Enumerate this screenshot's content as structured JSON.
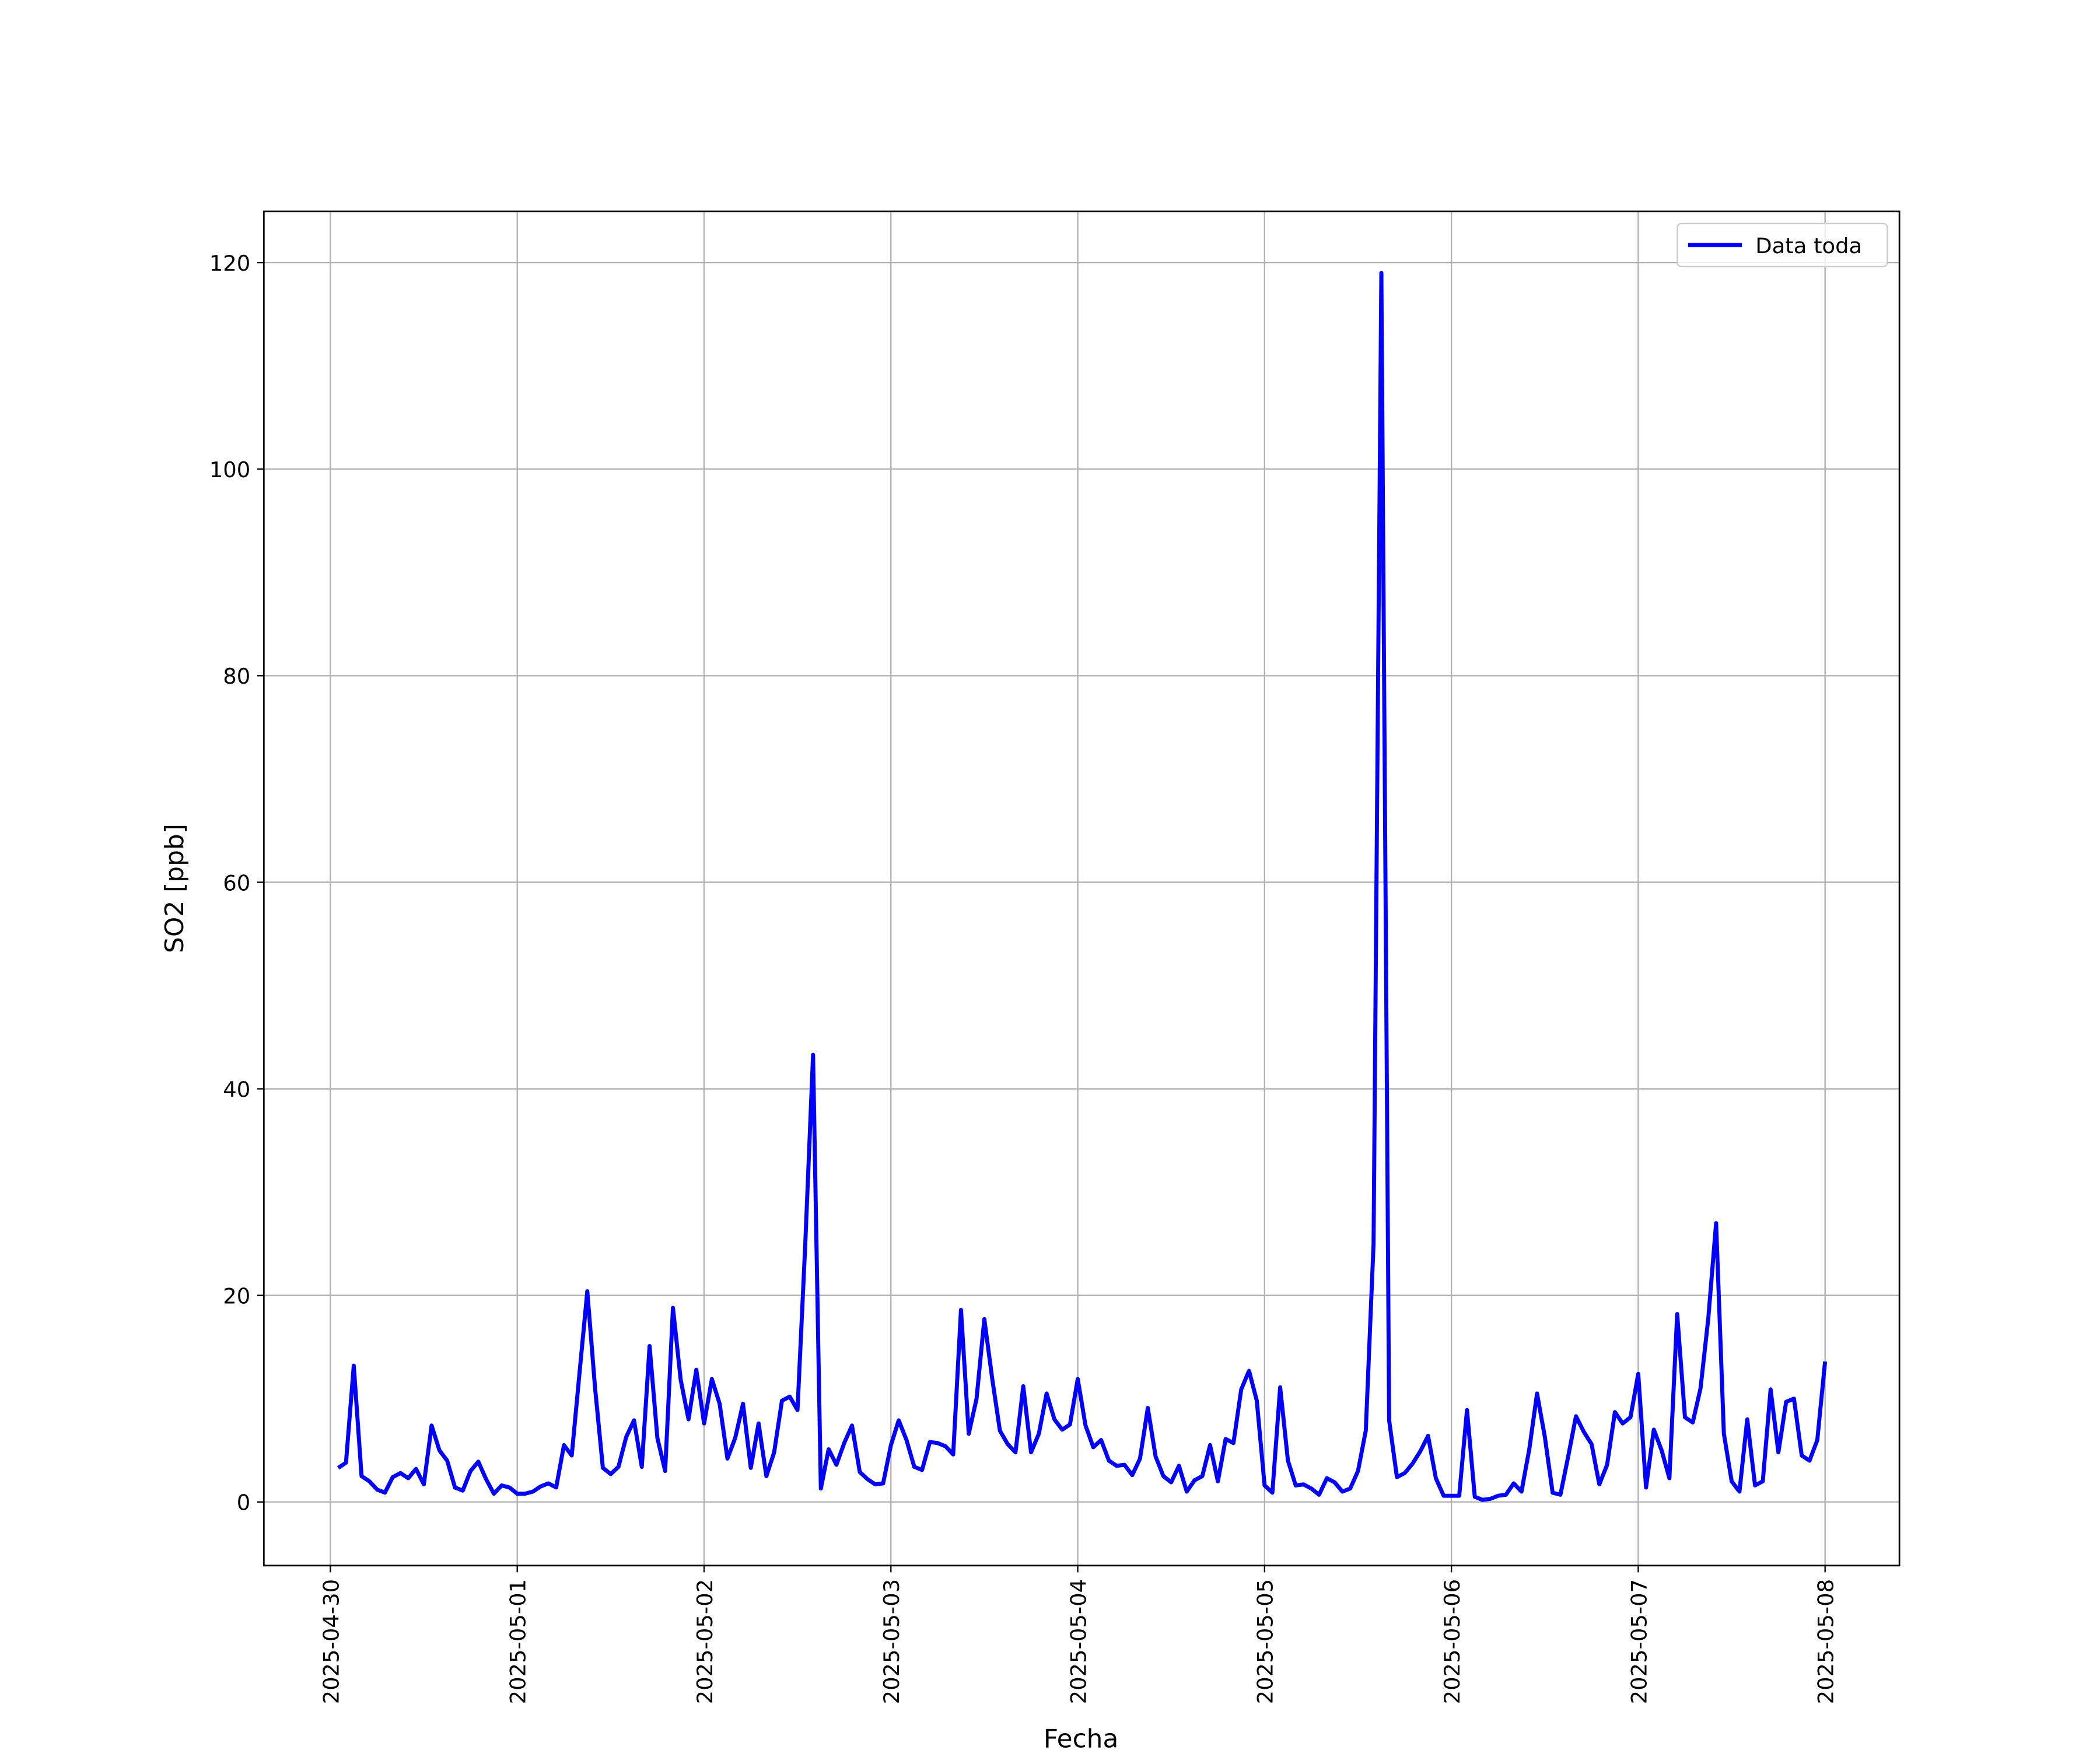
{
  "chart_data": {
    "type": "line",
    "x_label": "Fecha",
    "y_label": "SO2 [ppb]",
    "x": [
      1,
      2,
      3,
      4,
      5,
      6,
      7,
      8,
      9,
      10,
      11,
      12,
      13,
      14,
      15,
      16,
      17,
      18,
      19,
      20,
      21,
      22,
      23,
      24,
      25,
      26,
      27,
      28,
      29,
      30,
      31,
      32,
      33,
      34,
      35,
      36,
      37,
      38,
      39,
      40,
      41,
      42,
      43,
      44,
      45,
      46,
      47,
      48,
      49,
      50,
      51,
      52,
      53,
      54,
      55,
      56,
      57,
      58,
      59,
      60,
      61,
      62,
      63,
      64,
      65,
      66,
      67,
      68,
      69,
      70,
      71,
      72,
      73,
      74,
      75,
      76,
      77,
      78,
      79,
      80,
      81,
      82,
      83,
      84,
      85,
      86,
      87,
      88,
      89,
      90,
      91,
      92,
      93,
      94,
      95,
      96,
      97,
      98,
      99,
      100,
      101,
      102,
      103,
      104,
      105,
      106,
      107,
      108,
      109,
      110,
      111,
      112,
      113,
      114,
      115,
      116,
      117,
      118,
      119,
      120,
      121,
      122,
      123,
      124,
      125,
      126,
      127,
      128,
      129,
      130,
      131,
      132,
      133,
      134,
      135,
      136,
      137,
      138,
      139,
      140,
      141,
      142,
      143,
      144,
      145,
      146,
      147,
      148,
      149,
      150,
      151,
      152,
      153,
      154,
      155,
      156,
      157,
      158,
      159,
      160,
      161,
      162,
      163,
      164,
      165,
      166,
      167,
      168,
      169,
      170,
      171,
      172,
      173,
      174,
      175,
      176,
      177,
      178,
      179,
      180,
      181,
      182,
      183,
      184,
      185,
      186,
      187,
      188,
      189,
      190,
      191,
      192
    ],
    "series": [
      {
        "name": "Data toda",
        "color": "#0000ff",
        "values": [
          3.3,
          3.8,
          13.2,
          2.5,
          2,
          1.2,
          0.9,
          2.4,
          2.8,
          2.3,
          3.2,
          1.7,
          7.4,
          5,
          4,
          1.4,
          1.1,
          3,
          3.9,
          2.2,
          0.8,
          1.6,
          1.4,
          0.8,
          0.8,
          1,
          1.5,
          1.8,
          1.4,
          5.5,
          4.5,
          12.5,
          20.4,
          11,
          3.3,
          2.7,
          3.4,
          6.3,
          7.9,
          3.4,
          15.1,
          6.2,
          3,
          18.8,
          11.8,
          8,
          12.8,
          7.6,
          11.9,
          9.5,
          4.2,
          6.2,
          9.5,
          3.3,
          7.6,
          2.5,
          4.8,
          9.8,
          10.2,
          8.9,
          25,
          43.3,
          1.3,
          5.1,
          3.6,
          5.7,
          7.4,
          2.9,
          2.2,
          1.7,
          1.8,
          5.5,
          7.9,
          6,
          3.4,
          3.1,
          5.8,
          5.7,
          5.4,
          4.6,
          18.6,
          6.6,
          10,
          17.7,
          12,
          6.9,
          5.6,
          4.8,
          11.2,
          4.8,
          6.6,
          10.5,
          8,
          7,
          7.5,
          11.9,
          7.4,
          5.3,
          6,
          4,
          3.5,
          3.6,
          2.6,
          4.2,
          9.1,
          4.4,
          2.5,
          1.9,
          3.5,
          1,
          2.1,
          2.5,
          5.5,
          2,
          6.1,
          5.7,
          10.9,
          12.7,
          9.8,
          1.6,
          0.9,
          11.1,
          4,
          1.6,
          1.7,
          1.3,
          0.7,
          2.3,
          1.9,
          1,
          1.3,
          3,
          6.9,
          25,
          119,
          7.9,
          2.4,
          2.8,
          3.7,
          4.9,
          6.4,
          2.3,
          0.6,
          0.6,
          0.6,
          8.9,
          0.5,
          0.2,
          0.3,
          0.6,
          0.7,
          1.8,
          1,
          5.1,
          10.5,
          6.3,
          0.9,
          0.7,
          4.4,
          8.3,
          6.8,
          5.6,
          1.7,
          3.6,
          8.7,
          7.6,
          8.2,
          12.4,
          1.4,
          7,
          5,
          2.3,
          18.2,
          8.2,
          7.7,
          11,
          17.8,
          27,
          6.6,
          2,
          1,
          8,
          1.6,
          2,
          10.9,
          4.8,
          9.7,
          10,
          4.5,
          4,
          6,
          13.6
        ]
      }
    ],
    "xlim": [
      -8.55,
      201.55
    ],
    "xticks": [
      {
        "value": 0,
        "label": "2025-04-30"
      },
      {
        "value": 24,
        "label": "2025-05-01"
      },
      {
        "value": 48,
        "label": "2025-05-02"
      },
      {
        "value": 72,
        "label": "2025-05-03"
      },
      {
        "value": 96,
        "label": "2025-05-04"
      },
      {
        "value": 120,
        "label": "2025-05-05"
      },
      {
        "value": 144,
        "label": "2025-05-06"
      },
      {
        "value": 168,
        "label": "2025-05-07"
      },
      {
        "value": 192,
        "label": "2025-05-08"
      }
    ],
    "ylim": [
      -6.16,
      124.96
    ],
    "yticks": [
      0,
      20,
      40,
      60,
      80,
      100,
      120
    ],
    "grid": true,
    "legend": "upper right"
  }
}
